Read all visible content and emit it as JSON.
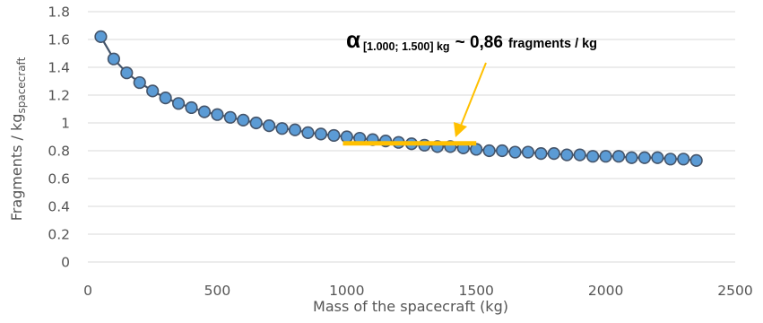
{
  "chart_data": {
    "type": "scatter",
    "title": "",
    "xlabel": "Mass of the spacecraft (kg)",
    "ylabel_main": "Fragments / kg",
    "ylabel_sub": "spacecraft",
    "xlim": [
      0,
      2500
    ],
    "ylim": [
      0,
      1.8
    ],
    "x_ticks": [
      0,
      500,
      1000,
      1500,
      2000,
      2500
    ],
    "x_tick_labels": [
      "0",
      "500",
      "1000",
      "1500",
      "2000",
      "2500"
    ],
    "y_ticks": [
      0,
      0.2,
      0.4,
      0.6,
      0.8,
      1.0,
      1.2,
      1.4,
      1.6,
      1.8
    ],
    "y_tick_labels": [
      "0",
      "0.2",
      "0.4",
      "0.6",
      "0.8",
      "1",
      "1.2",
      "1.4",
      "1.6",
      "1.8"
    ],
    "grid": "horizontal",
    "legend": "none",
    "series": [
      {
        "marker_color": "#5b9bd5",
        "line_color": "#44546a",
        "x": [
          50,
          100,
          150,
          200,
          250,
          300,
          350,
          400,
          450,
          500,
          550,
          600,
          650,
          700,
          750,
          800,
          850,
          900,
          950,
          1000,
          1050,
          1100,
          1150,
          1200,
          1250,
          1300,
          1350,
          1400,
          1450,
          1500,
          1550,
          1600,
          1650,
          1700,
          1750,
          1800,
          1850,
          1900,
          1950,
          2000,
          2050,
          2100,
          2150,
          2200,
          2250,
          2300,
          2350
        ],
        "y": [
          1.62,
          1.46,
          1.36,
          1.29,
          1.23,
          1.18,
          1.14,
          1.11,
          1.08,
          1.06,
          1.04,
          1.02,
          1.0,
          0.98,
          0.96,
          0.95,
          0.93,
          0.92,
          0.91,
          0.9,
          0.89,
          0.88,
          0.87,
          0.86,
          0.85,
          0.84,
          0.83,
          0.83,
          0.82,
          0.81,
          0.8,
          0.8,
          0.79,
          0.79,
          0.78,
          0.78,
          0.77,
          0.77,
          0.76,
          0.76,
          0.76,
          0.75,
          0.75,
          0.75,
          0.74,
          0.74,
          0.73
        ]
      }
    ],
    "annotation": {
      "symbol": "α",
      "subscript": "[1.000; 1.500] kg",
      "text": "~ 0,86 fragments / kg",
      "value_prefix": "~ 0,86",
      "value_suffix": "fragments / kg",
      "fit_line": {
        "x": [
          985,
          1500
        ],
        "y": 0.86,
        "color": "#ffc000"
      },
      "arrow_color": "#ffc000"
    }
  }
}
